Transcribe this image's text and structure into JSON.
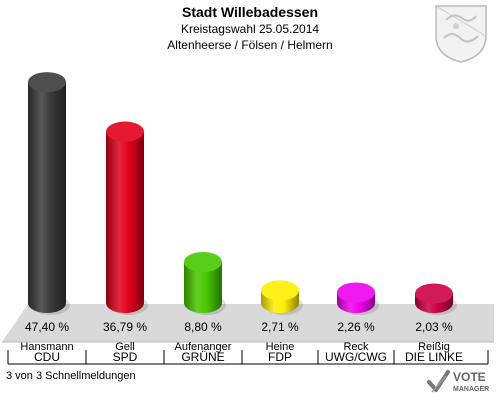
{
  "header": {
    "title": "Stadt Willebadessen",
    "subtitle1": "Kreistagswahl 25.05.2014",
    "subtitle2": "Altenheerse / Fölsen / Helmern"
  },
  "footer": {
    "status": "3 von 3 Schnellmeldungen"
  },
  "badge": {
    "line1": "VOTE",
    "line2": "MANAGER"
  },
  "chart_data": {
    "type": "bar",
    "title": "Stadt Willebadessen",
    "categories": [
      "CDU",
      "SPD",
      "GRÜNE",
      "FDP",
      "UWG/CWG",
      "DIE LINKE"
    ],
    "candidates": [
      "Hansmann",
      "Gell",
      "Aufenanger",
      "Heine",
      "Reck",
      "Reißig"
    ],
    "values": [
      47.4,
      36.79,
      8.8,
      2.71,
      2.26,
      2.03
    ],
    "value_labels": [
      "47,40 %",
      "36,79 %",
      "8,80 %",
      "2,71 %",
      "2,26 %",
      "2,03 %"
    ],
    "colors": [
      "#3a3a3a",
      "#e2001a",
      "#46c800",
      "#ffee00",
      "#ee00ee",
      "#cc0044"
    ],
    "ylim": [
      0,
      50
    ],
    "grid": false,
    "legend": "none"
  }
}
